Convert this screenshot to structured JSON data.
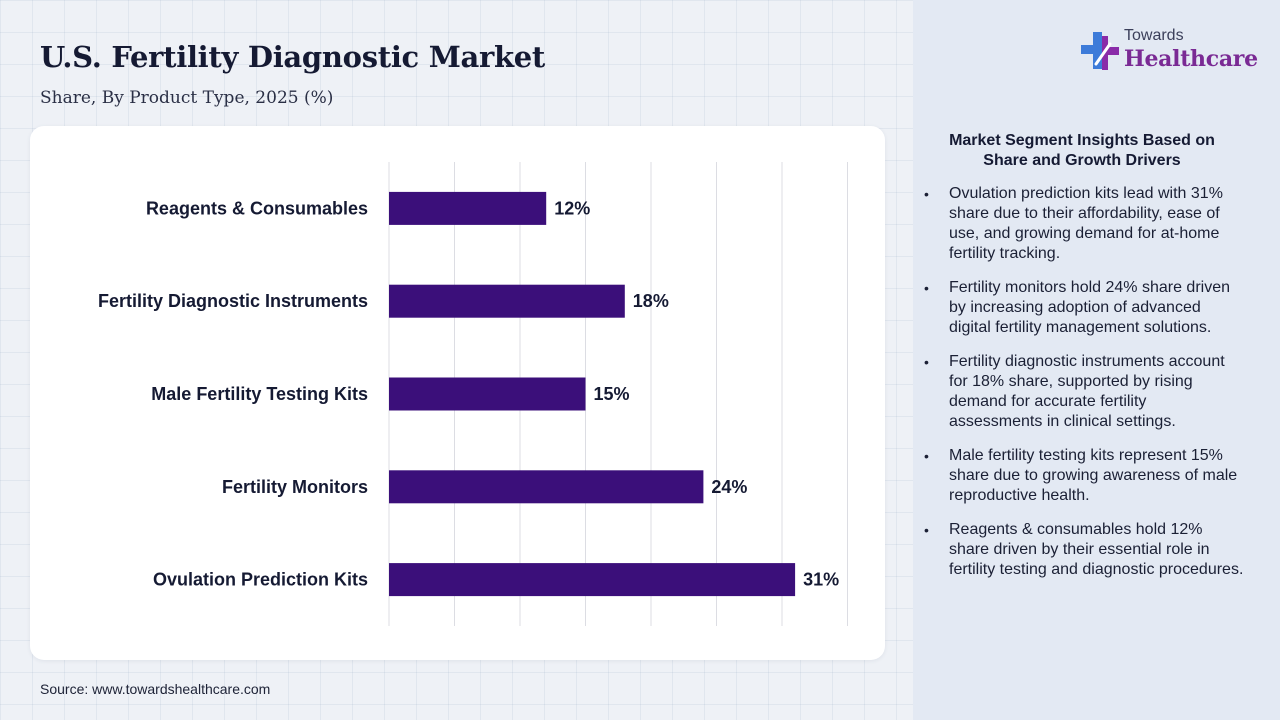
{
  "header": {
    "title": "U.S. Fertility Diagnostic Market",
    "subtitle": "Share, By Product Type, 2025 (%)"
  },
  "logo": {
    "small": "Towards",
    "big": "Healthcare",
    "icon": "medical-cross-icon",
    "colors": {
      "cross_left": "#3d7bd9",
      "cross_right": "#8a2ba8"
    }
  },
  "chart_data": {
    "type": "bar",
    "orientation": "horizontal",
    "categories": [
      "Reagents & Consumables",
      "Fertility Diagnostic Instruments",
      "Male Fertility Testing Kits",
      "Fertility Monitors",
      "Ovulation Prediction Kits"
    ],
    "values": [
      12,
      18,
      15,
      24,
      31
    ],
    "data_labels": [
      "12%",
      "18%",
      "15%",
      "24%",
      "31%"
    ],
    "unit": "%",
    "xlim": [
      0,
      35
    ],
    "grid": true,
    "bar_color": "#3b0f7a"
  },
  "insights": {
    "title": "Market Segment Insights Based on Share and Growth Drivers",
    "items": [
      "Ovulation prediction kits lead with 31% share due to their affordability, ease of use, and growing demand for at-home fertility tracking.",
      "Fertility monitors hold 24% share driven by increasing adoption of advanced digital fertility management solutions.",
      "Fertility diagnostic instruments account for 18% share, supported by rising demand for accurate fertility assessments in clinical settings.",
      "Male fertility testing kits represent 15% share due to growing awareness of male reproductive health.",
      "Reagents & consumables hold 12% share driven by their essential role in fertility testing and diagnostic procedures."
    ]
  },
  "footer": {
    "source": "Source: www.towardshealthcare.com"
  }
}
